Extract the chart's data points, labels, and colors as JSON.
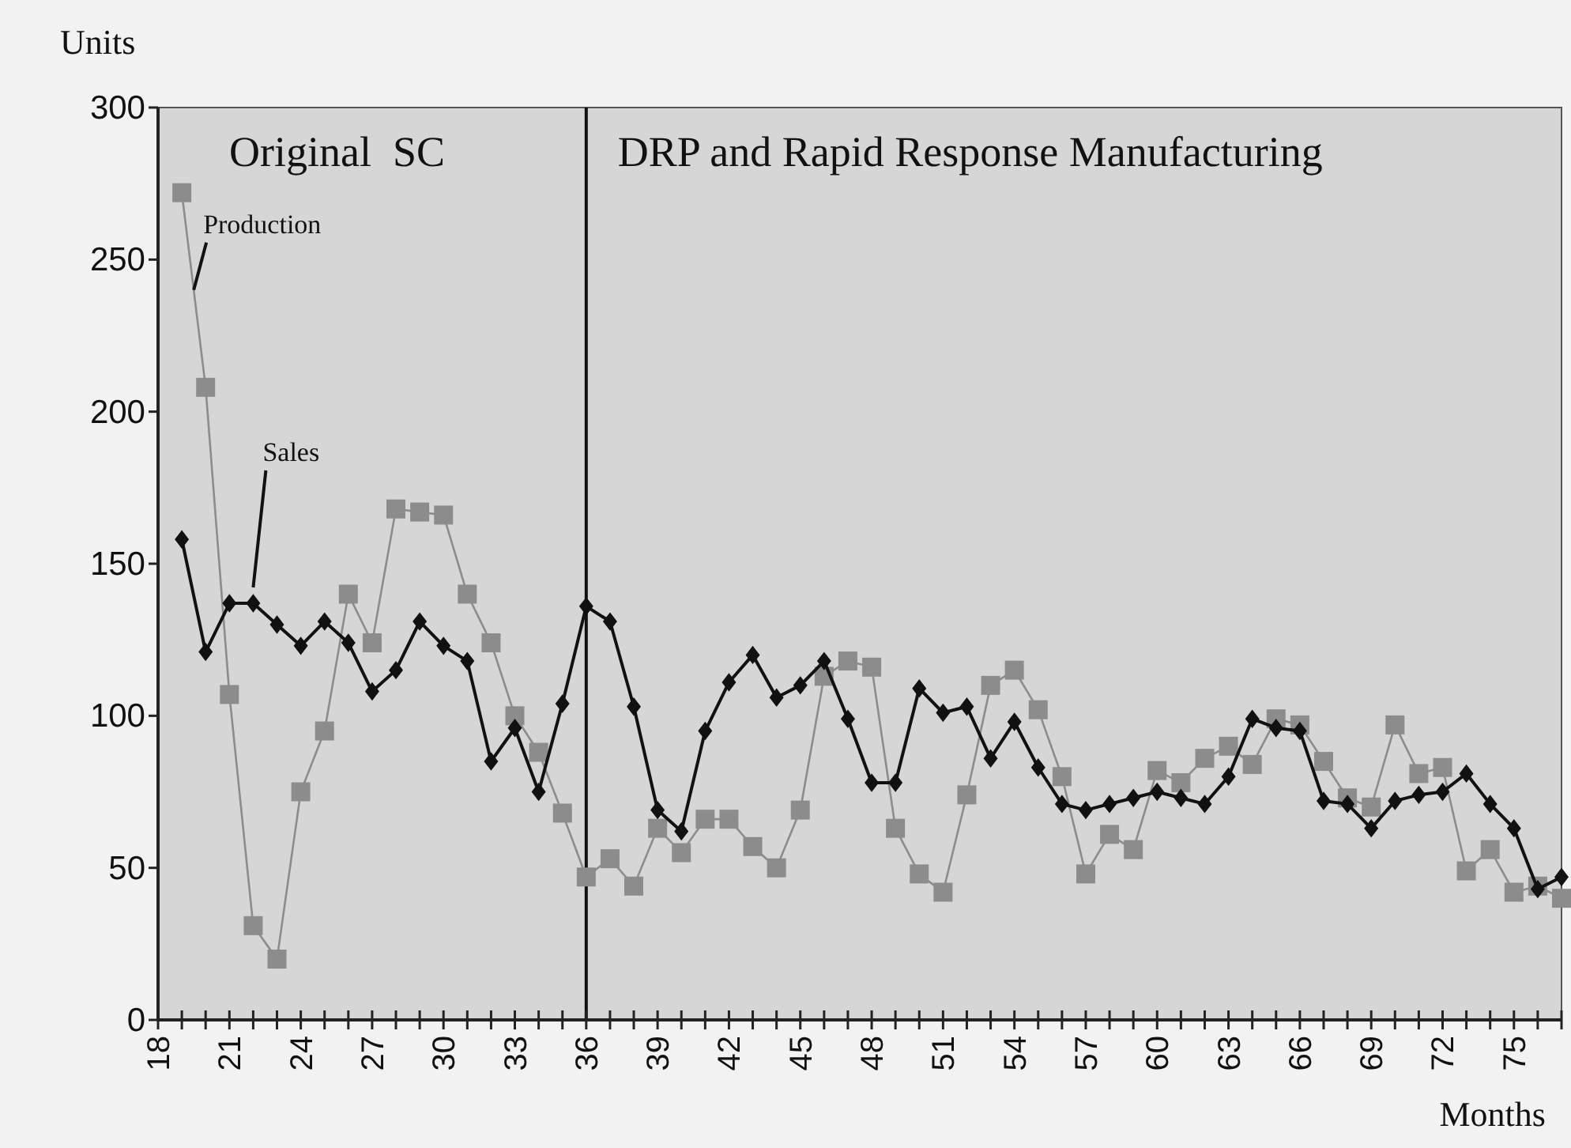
{
  "chart_data": {
    "type": "line",
    "xlabel": "Months",
    "ylabel": "Units",
    "x": [
      19,
      20,
      21,
      22,
      23,
      24,
      25,
      26,
      27,
      28,
      29,
      30,
      31,
      32,
      33,
      34,
      35,
      36,
      37,
      38,
      39,
      40,
      41,
      42,
      43,
      44,
      45,
      46,
      47,
      48,
      49,
      50,
      51,
      52,
      53,
      54,
      55,
      56,
      57,
      58,
      59,
      60,
      61,
      62,
      63,
      64,
      65,
      66,
      67,
      68,
      69,
      70,
      71,
      72,
      73,
      74,
      75,
      76,
      77
    ],
    "series": [
      {
        "name": "Production",
        "color": "#8c8c8c",
        "marker": "square",
        "values": [
          272,
          208,
          107,
          31,
          20,
          75,
          95,
          140,
          124,
          168,
          167,
          166,
          140,
          124,
          100,
          88,
          68,
          47,
          53,
          44,
          63,
          55,
          66,
          66,
          57,
          50,
          69,
          113,
          118,
          116,
          63,
          48,
          42,
          74,
          110,
          115,
          102,
          80,
          48,
          61,
          56,
          82,
          78,
          86,
          90,
          84,
          99,
          97,
          85,
          73,
          70,
          97,
          81,
          83,
          49,
          56,
          42,
          44,
          40
        ]
      },
      {
        "name": "Sales",
        "color": "#111111",
        "marker": "diamond",
        "values": [
          158,
          121,
          137,
          137,
          130,
          123,
          131,
          124,
          108,
          115,
          131,
          123,
          118,
          85,
          96,
          75,
          104,
          136,
          131,
          103,
          69,
          62,
          95,
          111,
          120,
          106,
          110,
          118,
          99,
          78,
          78,
          109,
          101,
          103,
          86,
          98,
          83,
          71,
          69,
          71,
          73,
          75,
          73,
          71,
          80,
          99,
          96,
          95,
          72,
          71,
          63,
          72,
          74,
          75,
          81,
          71,
          63,
          43,
          47
        ]
      }
    ],
    "xlim": [
      18,
      77
    ],
    "xticks": [
      18,
      {
        "value": 19,
        "label": null
      },
      {
        "value": 20,
        "label": null
      },
      21,
      {
        "value": 22,
        "label": null
      },
      {
        "value": 23,
        "label": null
      },
      24,
      {
        "value": 25,
        "label": null
      },
      {
        "value": 26,
        "label": null
      },
      27,
      {
        "value": 28,
        "label": null
      },
      {
        "value": 29,
        "label": null
      },
      30,
      {
        "value": 31,
        "label": null
      },
      {
        "value": 32,
        "label": null
      },
      33,
      {
        "value": 34,
        "label": null
      },
      {
        "value": 35,
        "label": null
      },
      36,
      {
        "value": 37,
        "label": null
      },
      {
        "value": 38,
        "label": null
      },
      39,
      {
        "value": 40,
        "label": null
      },
      {
        "value": 41,
        "label": null
      },
      42,
      {
        "value": 43,
        "label": null
      },
      {
        "value": 44,
        "label": null
      },
      45,
      {
        "value": 46,
        "label": null
      },
      {
        "value": 47,
        "label": null
      },
      48,
      {
        "value": 49,
        "label": null
      },
      {
        "value": 50,
        "label": null
      },
      51,
      {
        "value": 52,
        "label": null
      },
      {
        "value": 53,
        "label": null
      },
      54,
      {
        "value": 55,
        "label": null
      },
      {
        "value": 56,
        "label": null
      },
      57,
      {
        "value": 58,
        "label": null
      },
      {
        "value": 59,
        "label": null
      },
      60,
      {
        "value": 61,
        "label": null
      },
      {
        "value": 62,
        "label": null
      },
      63,
      {
        "value": 64,
        "label": null
      },
      {
        "value": 65,
        "label": null
      },
      66,
      {
        "value": 67,
        "label": null
      },
      {
        "value": 68,
        "label": null
      },
      69,
      {
        "value": 70,
        "label": null
      },
      {
        "value": 71,
        "label": null
      },
      72,
      {
        "value": 73,
        "label": null
      },
      {
        "value": 74,
        "label": null
      },
      75,
      {
        "value": 76,
        "label": null
      },
      {
        "value": 77,
        "label": null
      }
    ],
    "ylim": [
      0,
      300
    ],
    "yticks": [
      0,
      50,
      100,
      150,
      200,
      250,
      300
    ],
    "ref_lines": [
      {
        "axis": "x",
        "value": 36,
        "color": "#111111"
      }
    ],
    "annotations": [
      "Original  SC",
      "DRP and Rapid Response Manufacturing"
    ],
    "grid": false,
    "line_style": "solid"
  }
}
